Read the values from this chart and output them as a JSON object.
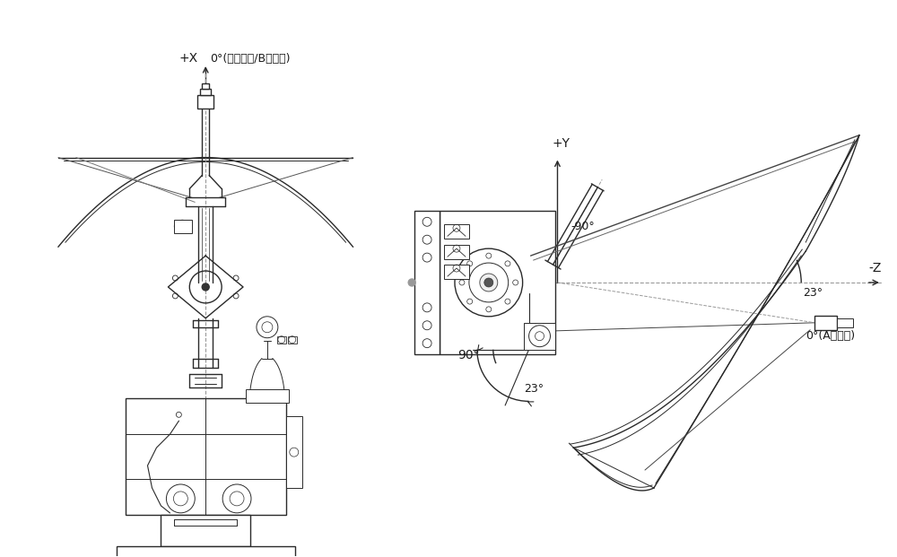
{
  "figure_width": 10.0,
  "figure_height": 6.21,
  "dpi": 100,
  "bg_color": "#ffffff",
  "lc": "#2a2a2a",
  "dc": "#999999",
  "ac": "#1a1a1a",
  "left_label_x": "+X",
  "left_label_zero": "0°(系统零位/B轴零位)",
  "right_label_y": "+Y",
  "right_label_neg90": "-90°",
  "right_label_neg_z": "-Z",
  "right_label_23a": "23°",
  "right_label_23b": "23°",
  "right_label_90": "90°",
  "right_label_0a": "0°(A轴零位)"
}
